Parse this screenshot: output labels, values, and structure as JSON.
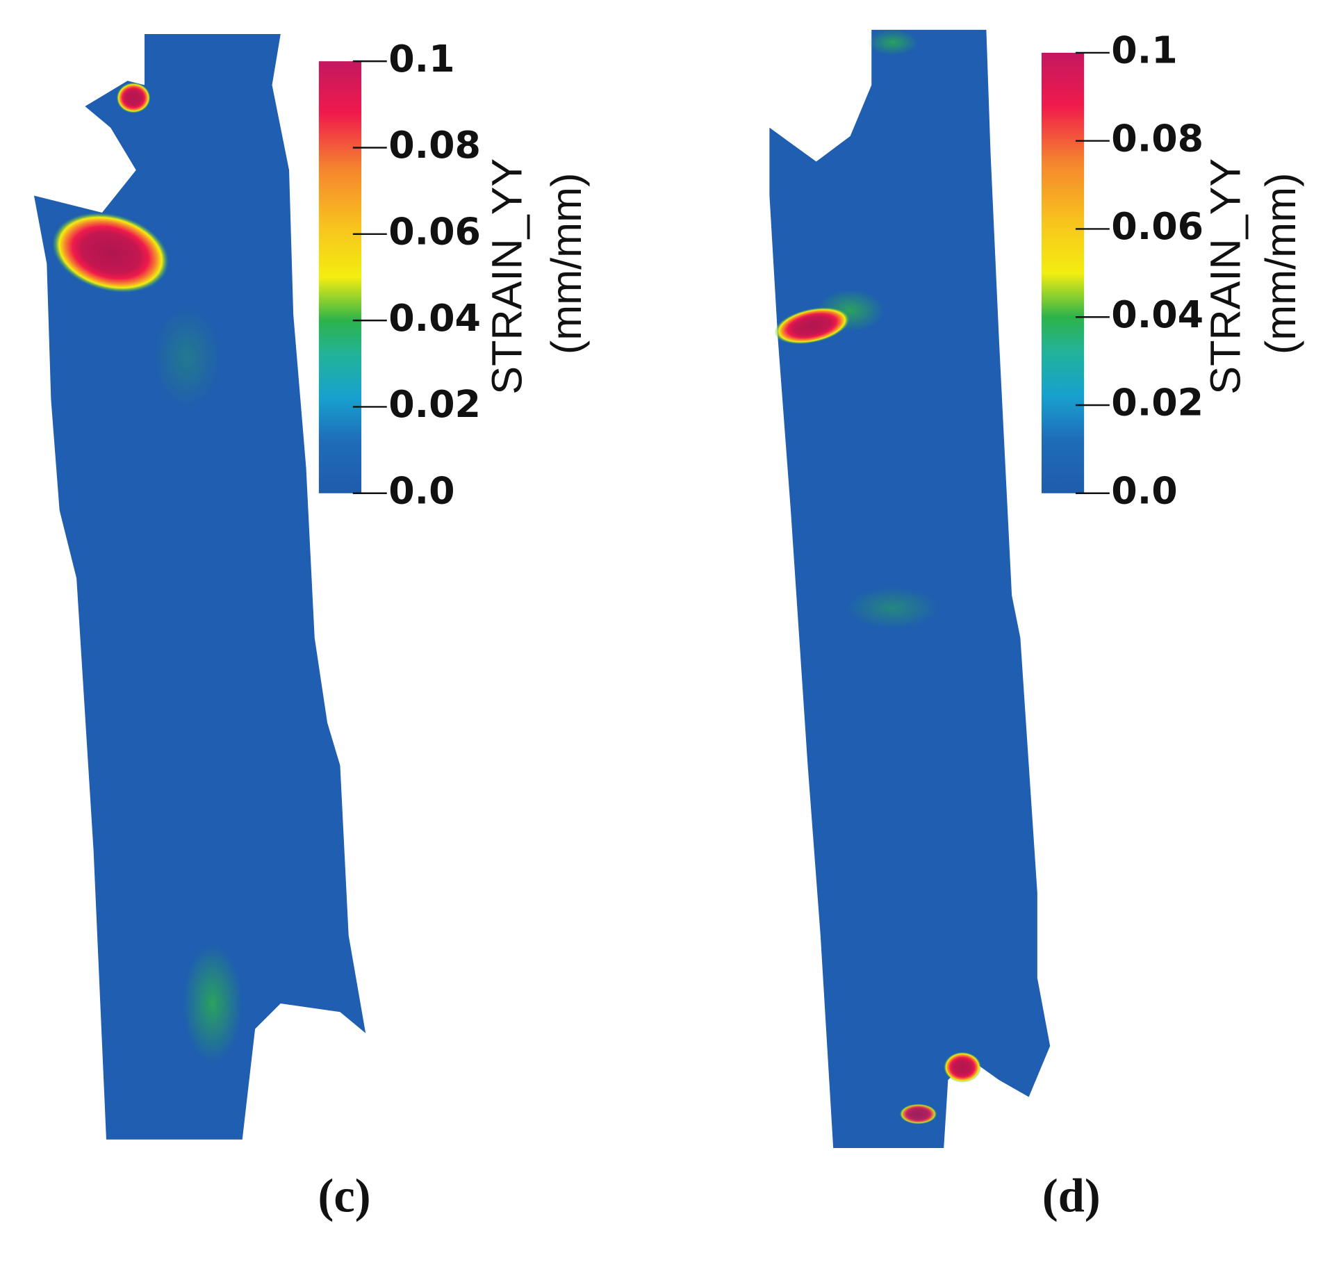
{
  "panels": [
    {
      "label": "(c)",
      "colorbar": {
        "title": "STRAIN_YY",
        "unit": "(mm/mm)",
        "lim": [
          0,
          0.1
        ],
        "ticks": [
          {
            "value": 0,
            "label": "0.0"
          },
          0.02,
          0.04,
          0.06,
          0.08,
          0.1
        ]
      }
    },
    {
      "label": "(d)",
      "colorbar": {
        "title": "STRAIN_YY",
        "unit": "(mm/mm)",
        "lim": [
          0,
          0.1
        ],
        "ticks": [
          {
            "value": 0,
            "label": "0.0"
          },
          0.02,
          0.04,
          0.06,
          0.08,
          0.1
        ]
      }
    }
  ]
}
